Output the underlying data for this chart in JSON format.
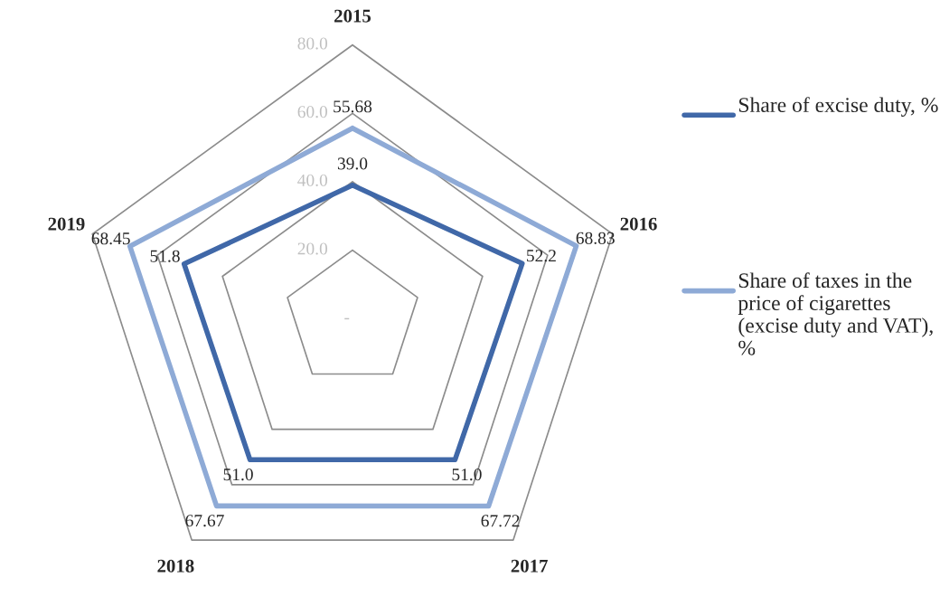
{
  "chart_data": {
    "type": "radar",
    "categories": [
      "2015",
      "2016",
      "2017",
      "2018",
      "2019"
    ],
    "series": [
      {
        "name": "Share of excise duty, %",
        "color": "#4068a8",
        "values": [
          39.0,
          52.2,
          51.0,
          51.0,
          51.8
        ],
        "value_labels": [
          "39.0",
          "52.2",
          "51.0",
          "51.0",
          "51.8"
        ]
      },
      {
        "name": "Share of taxes in the price of cigarettes (excise duty and VAT), %",
        "color": "#8eaad6",
        "values": [
          55.68,
          68.83,
          67.72,
          67.67,
          68.45
        ],
        "value_labels": [
          "55.68",
          "68.83",
          "67.72",
          "67.67",
          "68.45"
        ]
      }
    ],
    "ylim": [
      0,
      80
    ],
    "yticks": [
      {
        "value": 0,
        "label": "-"
      },
      {
        "value": 20,
        "label": "20.0"
      },
      {
        "value": 40,
        "label": "40.0"
      },
      {
        "value": 60,
        "label": "60.0"
      },
      {
        "value": 80,
        "label": "80.0"
      }
    ],
    "grid": true,
    "legend": "right",
    "data_labels": true
  }
}
